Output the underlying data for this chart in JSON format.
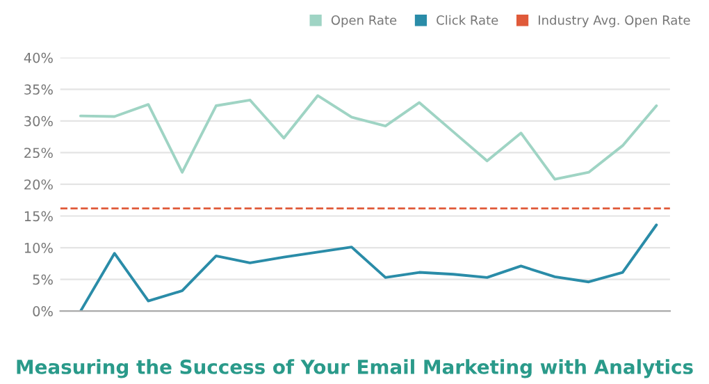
{
  "chart_data": {
    "type": "line",
    "title": "Measuring the Success of Your Email Marketing with Analytics",
    "categories": [
      null,
      null,
      null,
      null,
      null,
      null,
      null,
      null,
      null,
      null,
      null,
      null,
      null,
      null,
      null,
      null,
      null,
      null
    ],
    "series": [
      {
        "name": "Open Rate",
        "color": "#9fd4c4",
        "values": [
          30.8,
          30.7,
          32.6,
          21.9,
          32.4,
          33.3,
          27.3,
          34.0,
          30.6,
          29.2,
          32.9,
          28.3,
          23.7,
          28.1,
          20.8,
          21.9,
          26.1,
          32.4
        ]
      },
      {
        "name": "Click Rate",
        "color": "#2a8ca8",
        "values": [
          0,
          9.1,
          1.6,
          3.2,
          8.7,
          7.6,
          8.5,
          9.3,
          10.1,
          5.3,
          6.1,
          5.8,
          5.3,
          7.1,
          5.4,
          4.6,
          6.1,
          13.6
        ]
      }
    ],
    "ref_lines": [
      {
        "axis": "y",
        "value": 16.2,
        "label": "Industry Avg. Open Rate",
        "color": "#e05a3a",
        "line_style": "dashed"
      }
    ],
    "ylim": [
      0,
      40
    ],
    "yticks": [
      {
        "value": 0,
        "label": "0%"
      },
      {
        "value": 5,
        "label": "5%"
      },
      {
        "value": 10,
        "label": "10%"
      },
      {
        "value": 15,
        "label": "15%"
      },
      {
        "value": 20,
        "label": "20%"
      },
      {
        "value": 25,
        "label": "25%"
      },
      {
        "value": 30,
        "label": "30%"
      },
      {
        "value": 35,
        "label": "35%"
      },
      {
        "value": 40,
        "label": "40%"
      }
    ],
    "grid": "y",
    "legend": "top right",
    "marker": "none",
    "line_style": "solid"
  }
}
